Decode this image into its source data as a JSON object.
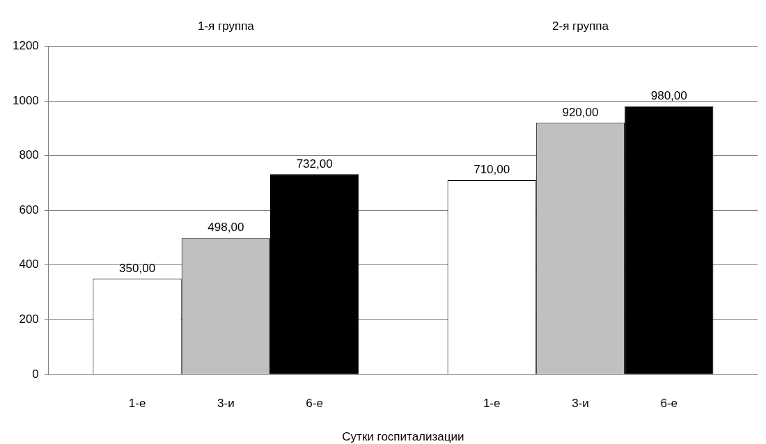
{
  "chart_data": {
    "type": "bar",
    "xlabel": "Сутки госпитализации",
    "categories": [
      "1-я группа",
      "2-я группа"
    ],
    "series": [
      {
        "name": "1-е",
        "color": "#ffffff",
        "values": [
          350,
          710
        ],
        "value_labels": [
          "350,00",
          "710,00"
        ]
      },
      {
        "name": "3-и",
        "color": "#c0c0c0",
        "values": [
          498,
          920
        ],
        "value_labels": [
          "498,00",
          "920,00"
        ]
      },
      {
        "name": "6-е",
        "color": "#000000",
        "values": [
          732,
          980
        ],
        "value_labels": [
          "732,00",
          "980,00"
        ]
      }
    ],
    "ylim": [
      0,
      1200
    ],
    "yticks": [
      0,
      200,
      400,
      600,
      800,
      1000,
      1200
    ],
    "grid": "y",
    "legend": false
  }
}
